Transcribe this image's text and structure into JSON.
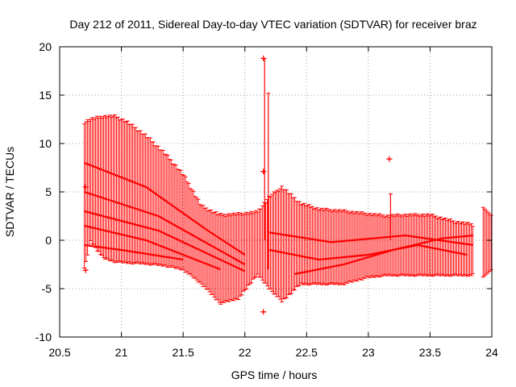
{
  "chart_data": {
    "type": "scatter",
    "title": "Day 212 of 2011, Sidereal Day-to-day VTEC variation (SDTVAR) for receiver braz",
    "xlabel": "GPS time / hours",
    "ylabel": "SDTVAR / TECUs",
    "xlim": [
      20.5,
      24
    ],
    "ylim": [
      -10,
      20
    ],
    "xticks": [
      "20.5",
      "21",
      "21.5",
      "22",
      "22.5",
      "23",
      "23.5",
      "24"
    ],
    "yticks": [
      "-10",
      "-5",
      "0",
      "5",
      "10",
      "15",
      "20"
    ],
    "grid": true,
    "series_color": "#ff0000",
    "envelope": {
      "x": [
        20.7,
        20.75,
        20.85,
        20.95,
        21.05,
        21.2,
        21.35,
        21.5,
        21.65,
        21.8,
        21.95,
        22.1,
        22.2,
        22.3,
        22.45,
        22.6,
        22.8,
        23.0,
        23.15,
        23.3,
        23.5,
        23.7,
        23.85
      ],
      "top": [
        12.2,
        12.5,
        12.8,
        12.8,
        12.2,
        10.8,
        9.0,
        6.8,
        3.5,
        2.6,
        2.7,
        2.9,
        4.5,
        5.5,
        3.8,
        3.2,
        3.0,
        2.7,
        2.5,
        2.6,
        2.6,
        1.9,
        1.6
      ],
      "bottom": [
        -3.0,
        0.0,
        -1.8,
        -2.2,
        -2.3,
        -2.4,
        -2.6,
        -3.0,
        -4.5,
        -6.5,
        -6.0,
        -3.5,
        -5.0,
        -6.3,
        -4.5,
        -4.5,
        -4.5,
        -3.8,
        -3.6,
        -3.6,
        -3.6,
        -3.6,
        -3.6
      ]
    },
    "tracks": [
      {
        "x": [
          20.7,
          21.2,
          21.7,
          22.0
        ],
        "y": [
          8.0,
          5.5,
          1.0,
          -1.5
        ]
      },
      {
        "x": [
          20.7,
          21.3,
          22.0
        ],
        "y": [
          5.0,
          2.5,
          -2.5
        ]
      },
      {
        "x": [
          20.7,
          21.3,
          22.0
        ],
        "y": [
          3.0,
          1.0,
          -3.2
        ]
      },
      {
        "x": [
          20.7,
          21.2,
          21.8
        ],
        "y": [
          1.5,
          0.0,
          -3.0
        ]
      },
      {
        "x": [
          20.7,
          21.0,
          21.5
        ],
        "y": [
          -0.5,
          -1.0,
          -2.0
        ]
      },
      {
        "x": [
          22.2,
          22.6,
          23.0,
          23.4,
          23.8
        ],
        "y": [
          -1.0,
          -2.0,
          -1.5,
          -0.5,
          -1.5
        ]
      },
      {
        "x": [
          22.4,
          22.8,
          23.2,
          23.6,
          23.85
        ],
        "y": [
          -3.5,
          -2.5,
          -1.0,
          0.2,
          0.5
        ]
      },
      {
        "x": [
          22.2,
          22.7,
          23.3,
          23.85
        ],
        "y": [
          0.8,
          -0.2,
          0.5,
          -0.5
        ]
      }
    ],
    "outliers": [
      {
        "x": 22.15,
        "y": 18.8
      },
      {
        "x": 22.15,
        "y": 7.1
      },
      {
        "x": 22.15,
        "y": -7.4
      },
      {
        "x": 23.17,
        "y": 8.4
      },
      {
        "x": 20.71,
        "y": -3.1
      },
      {
        "x": 20.71,
        "y": 5.5
      }
    ],
    "spikes": [
      {
        "x": 22.16,
        "top": 18.8,
        "bottom": 0.0
      },
      {
        "x": 22.19,
        "top": 15.2,
        "bottom": -3.0
      },
      {
        "x": 23.18,
        "top": 4.8,
        "bottom": 0.0
      }
    ],
    "late_segment": {
      "x": [
        23.93,
        24.0
      ],
      "top": [
        3.4,
        2.5
      ],
      "bottom": [
        -3.8,
        -3.0
      ]
    }
  }
}
